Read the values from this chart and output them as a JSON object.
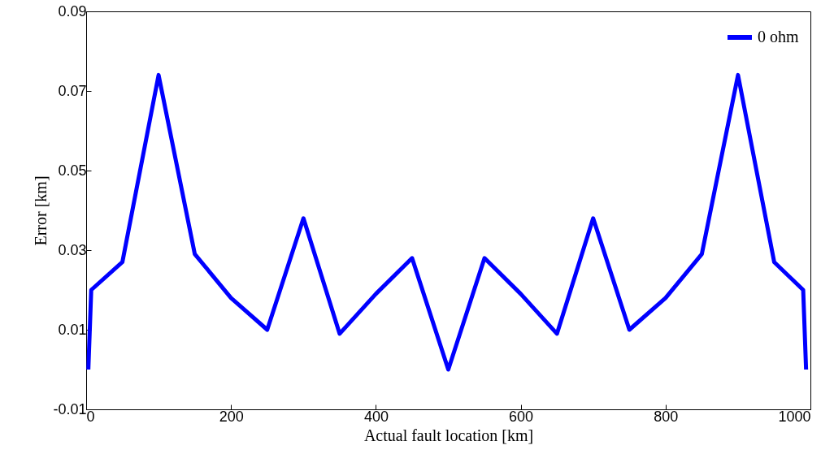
{
  "chart_data": {
    "type": "line",
    "xlabel": "Actual fault location [km]",
    "ylabel": "Error [km]",
    "x": [
      3,
      7,
      50,
      100,
      150,
      200,
      250,
      300,
      350,
      400,
      450,
      500,
      550,
      600,
      650,
      700,
      750,
      800,
      850,
      900,
      950,
      990,
      994
    ],
    "series": [
      {
        "name": "0 ohm",
        "color": "#0000ff",
        "values": [
          0,
          0.02,
          0.027,
          0.074,
          0.029,
          0.018,
          0.01,
          0.038,
          0.009,
          0.019,
          0.028,
          0,
          0.028,
          0.019,
          0.009,
          0.038,
          0.01,
          0.018,
          0.029,
          0.074,
          0.027,
          0.02,
          0
        ]
      }
    ],
    "xlim": [
      0,
      1000
    ],
    "xticks": [
      0,
      200,
      400,
      600,
      800,
      1000
    ],
    "ylim": [
      -0.01,
      0.09
    ],
    "yticks": [
      -0.01,
      0.01,
      0.03,
      0.05,
      0.07,
      0.09
    ],
    "legend": "top right",
    "grid": false,
    "marker": "none",
    "line_style": "solid"
  }
}
